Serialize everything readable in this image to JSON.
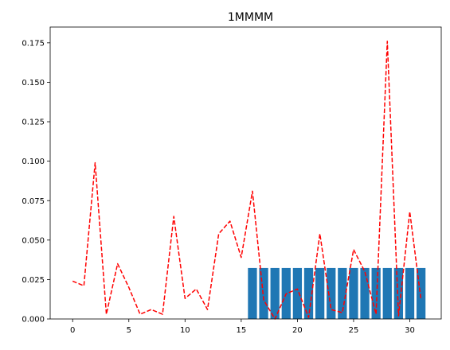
{
  "chart_data": {
    "type": "bar",
    "title": "1MMMM",
    "xlabel": "",
    "ylabel": "",
    "xlim": [
      -2.0,
      32.8
    ],
    "ylim": [
      0,
      0.185
    ],
    "grid": false,
    "x_ticks": [
      0,
      5,
      10,
      15,
      20,
      25,
      30
    ],
    "x_tick_labels": [
      "0",
      "5",
      "10",
      "15",
      "20",
      "25",
      "30"
    ],
    "y_ticks": [
      0,
      0.025,
      0.05,
      0.075,
      0.1,
      0.125,
      0.15,
      0.175
    ],
    "y_tick_labels": [
      "0.000",
      "0.025",
      "0.050",
      "0.075",
      "0.100",
      "0.125",
      "0.150",
      "0.175"
    ],
    "bars": {
      "color": "#1f77b4",
      "width": 0.8,
      "x": [
        16,
        17,
        18,
        19,
        20,
        21,
        22,
        23,
        24,
        25,
        26,
        27,
        28,
        29,
        30,
        31
      ],
      "values": [
        0.0323,
        0.0323,
        0.0323,
        0.0323,
        0.0323,
        0.0323,
        0.0323,
        0.0323,
        0.0323,
        0.0323,
        0.0323,
        0.0323,
        0.0323,
        0.0323,
        0.0323,
        0.0323
      ]
    },
    "line": {
      "color": "#ff0000",
      "style": "dashed",
      "x": [
        0,
        1,
        2,
        3,
        4,
        5,
        6,
        7,
        8,
        9,
        10,
        11,
        12,
        13,
        14,
        15,
        16,
        17,
        18,
        19,
        20,
        21,
        22,
        23,
        24,
        25,
        26,
        27,
        28,
        29,
        30,
        31
      ],
      "values": [
        0.024,
        0.021,
        0.099,
        0.003,
        0.035,
        0.02,
        0.003,
        0.006,
        0.003,
        0.065,
        0.013,
        0.019,
        0.006,
        0.054,
        0.062,
        0.039,
        0.081,
        0.012,
        0.0,
        0.016,
        0.019,
        0.001,
        0.054,
        0.006,
        0.004,
        0.044,
        0.03,
        0.003,
        0.176,
        0.002,
        0.068,
        0.012
      ]
    }
  }
}
